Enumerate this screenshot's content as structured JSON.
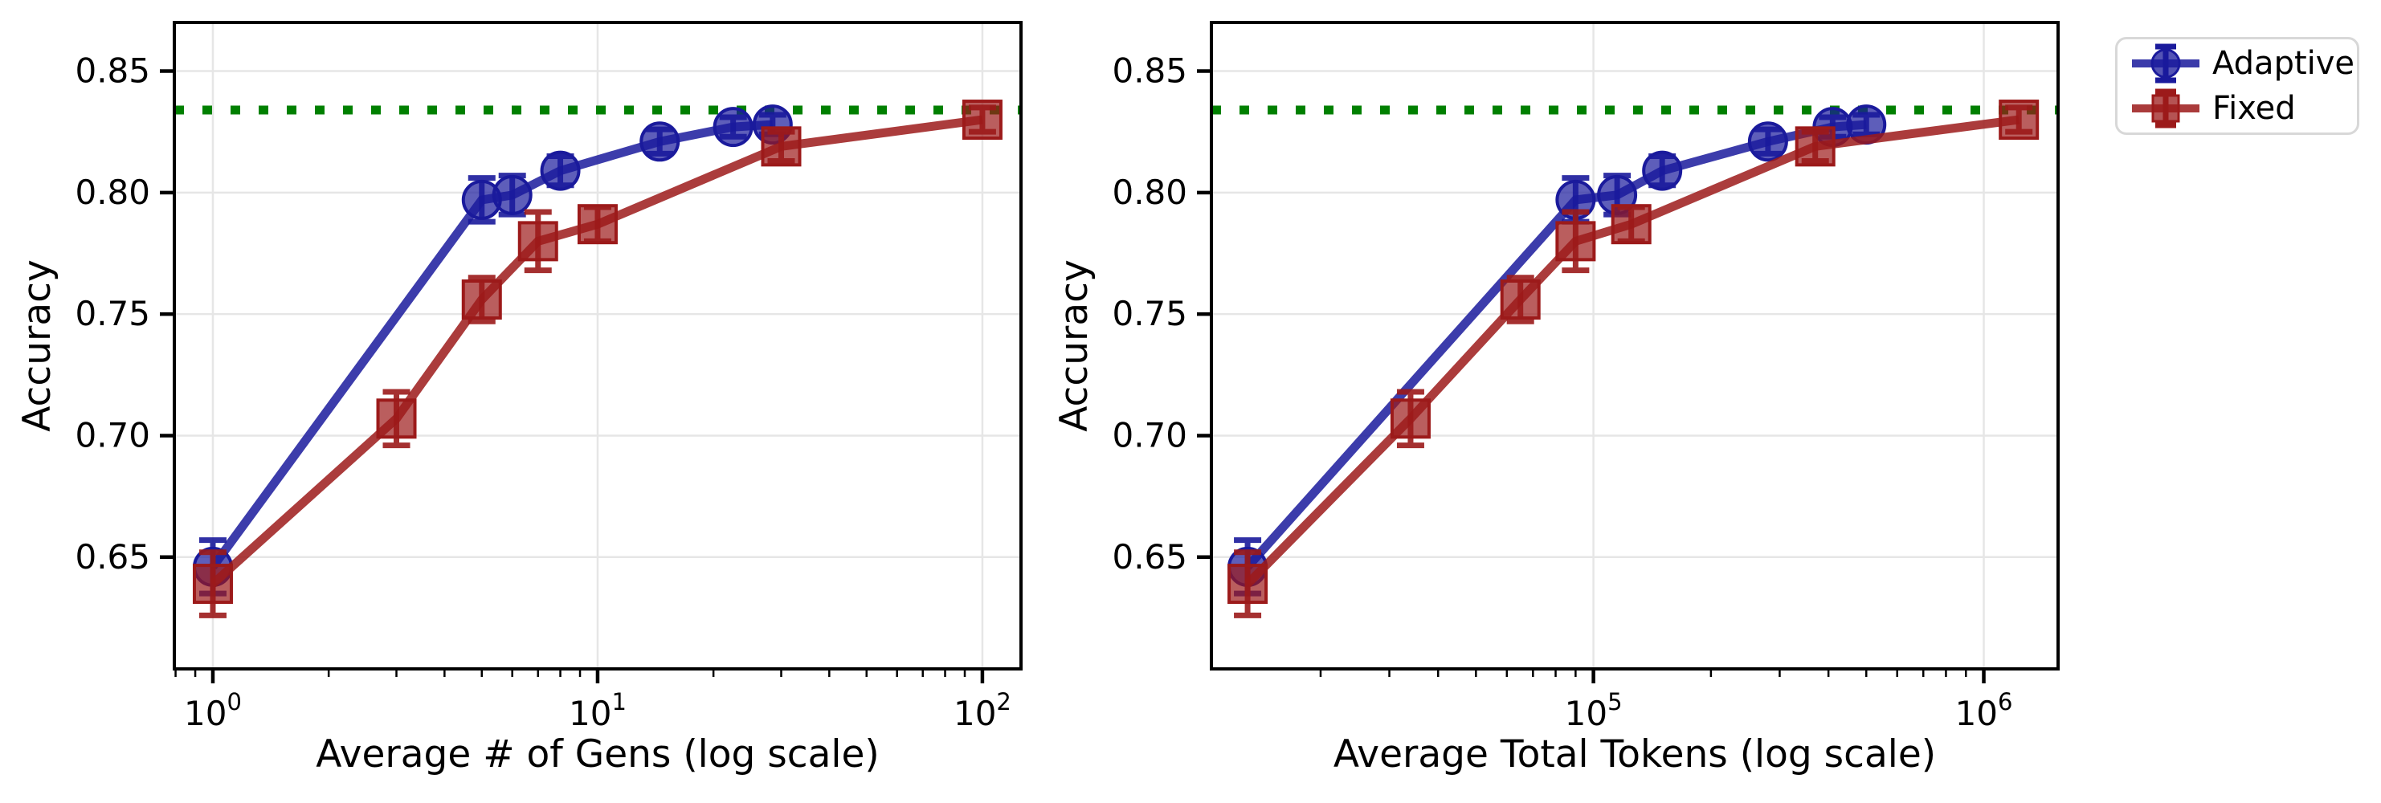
{
  "figure": {
    "background": "#ffffff",
    "text_color": "#000000",
    "grid_color": "#e6e6e6",
    "spine_color": "#000000",
    "legend": {
      "items": [
        {
          "label": "Adaptive",
          "marker": "circle",
          "color": "#1a1a9c"
        },
        {
          "label": "Fixed",
          "marker": "square",
          "color": "#9c1a1a"
        }
      ]
    }
  },
  "chart_data": [
    {
      "type": "line",
      "title": "",
      "xlabel": "Average # of Gens (log scale)",
      "ylabel": "Accuracy",
      "xscale": "log",
      "grid": true,
      "legend_position": "outside-top-right",
      "xlim": [
        0.794,
        126
      ],
      "ylim": [
        0.604,
        0.87
      ],
      "xticks": [
        {
          "v": 1,
          "base": "10",
          "exp": "0"
        },
        {
          "v": 10,
          "base": "10",
          "exp": "1"
        },
        {
          "v": 100,
          "base": "10",
          "exp": "2"
        }
      ],
      "yticks": [
        {
          "v": 0.65,
          "label": "0.65"
        },
        {
          "v": 0.7,
          "label": "0.70"
        },
        {
          "v": 0.75,
          "label": "0.75"
        },
        {
          "v": 0.8,
          "label": "0.80"
        },
        {
          "v": 0.85,
          "label": "0.85"
        }
      ],
      "hline": {
        "y": 0.834,
        "color": "#008000",
        "style": "dotted"
      },
      "series": [
        {
          "name": "Adaptive",
          "marker": "circle",
          "color": "#1a1a9c",
          "x": [
            1,
            5,
            6,
            8,
            14.5,
            22.5,
            28.5
          ],
          "y": [
            0.646,
            0.797,
            0.799,
            0.809,
            0.821,
            0.827,
            0.828
          ],
          "yerr": [
            0.011,
            0.009,
            0.008,
            0.006,
            0.005,
            0.004,
            0.004
          ]
        },
        {
          "name": "Fixed",
          "marker": "square",
          "color": "#9c1a1a",
          "x": [
            1,
            3,
            5,
            7,
            10,
            30,
            100
          ],
          "y": [
            0.639,
            0.707,
            0.756,
            0.78,
            0.787,
            0.819,
            0.83
          ],
          "yerr": [
            0.013,
            0.011,
            0.009,
            0.012,
            0.007,
            0.006,
            0.005
          ]
        }
      ]
    },
    {
      "type": "line",
      "title": "",
      "xlabel": "Average Total Tokens (log scale)",
      "ylabel": "Accuracy",
      "xscale": "log",
      "grid": true,
      "legend_position": "outside-top-right",
      "xlim": [
        10500,
        1550000
      ],
      "ylim": [
        0.604,
        0.87
      ],
      "xticks": [
        {
          "v": 100000,
          "base": "10",
          "exp": "5"
        },
        {
          "v": 1000000,
          "base": "10",
          "exp": "6"
        }
      ],
      "yticks": [
        {
          "v": 0.65,
          "label": "0.65"
        },
        {
          "v": 0.7,
          "label": "0.70"
        },
        {
          "v": 0.75,
          "label": "0.75"
        },
        {
          "v": 0.8,
          "label": "0.80"
        },
        {
          "v": 0.85,
          "label": "0.85"
        }
      ],
      "hline": {
        "y": 0.834,
        "color": "#008000",
        "style": "dotted"
      },
      "series": [
        {
          "name": "Adaptive",
          "marker": "circle",
          "color": "#1a1a9c",
          "x": [
            13000,
            90000,
            115000,
            150000,
            280000,
            410000,
            500000
          ],
          "y": [
            0.646,
            0.797,
            0.799,
            0.809,
            0.821,
            0.827,
            0.828
          ],
          "yerr": [
            0.011,
            0.009,
            0.008,
            0.006,
            0.005,
            0.004,
            0.004
          ]
        },
        {
          "name": "Fixed",
          "marker": "square",
          "color": "#9c1a1a",
          "x": [
            13000,
            34000,
            65000,
            90000,
            125000,
            370000,
            1230000
          ],
          "y": [
            0.639,
            0.707,
            0.756,
            0.78,
            0.787,
            0.819,
            0.83
          ],
          "yerr": [
            0.013,
            0.011,
            0.009,
            0.012,
            0.007,
            0.006,
            0.005
          ]
        }
      ]
    }
  ]
}
